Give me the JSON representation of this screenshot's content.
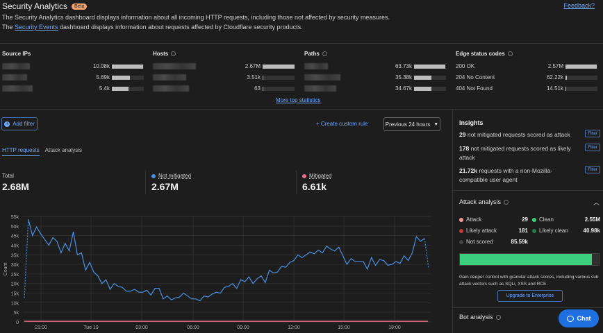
{
  "header": {
    "title": "Security Analytics",
    "badge": "Beta",
    "feedback": "Feedback?",
    "desc1": "The Security Analytics dashboard displays information about all incoming HTTP requests, including those not affected by security measures.",
    "desc2_prefix": "The ",
    "desc2_link": "Security Events",
    "desc2_suffix": " dashboard displays information about requests affected by Cloudflare security products."
  },
  "top_stats": {
    "source_ips": {
      "title": "Source IPs",
      "rows": [
        {
          "value": "10.08k",
          "share": 0.98
        },
        {
          "value": "5.69k",
          "share": 0.56
        },
        {
          "value": "5.4k",
          "share": 0.53
        }
      ]
    },
    "hosts": {
      "title": "Hosts",
      "rows": [
        {
          "value": "2.67M",
          "share": 0.99
        },
        {
          "value": "3.51k",
          "share": 0.02
        },
        {
          "value": "63",
          "share": 0.01
        }
      ]
    },
    "paths": {
      "title": "Paths",
      "rows": [
        {
          "value": "63.73k",
          "share": 0.98
        },
        {
          "value": "35.38k",
          "share": 0.55
        },
        {
          "value": "34.67k",
          "share": 0.54
        }
      ]
    },
    "edge_status": {
      "title": "Edge status codes",
      "rows": [
        {
          "name": "200 OK",
          "value": "2.57M",
          "share": 0.98
        },
        {
          "name": "204 No Content",
          "value": "62.22k",
          "share": 0.04
        },
        {
          "name": "404 Not Found",
          "value": "14.51k",
          "share": 0.02
        }
      ]
    },
    "more": "More top statistics"
  },
  "toolbar": {
    "add_filter": "Add filter",
    "custom_rule": "Create custom rule",
    "time_range": "Previous 24 hours"
  },
  "tabs": [
    "HTTP requests",
    "Attack analysis"
  ],
  "metrics": {
    "total": {
      "label": "Total",
      "value": "2.68M"
    },
    "not_mitigated": {
      "label": "Not mitigated",
      "value": "2.67M",
      "color": "#4a90e2"
    },
    "mitigated": {
      "label": "Mitigated",
      "value": "6.61k",
      "color": "#e86d8a"
    }
  },
  "chart_data": {
    "type": "line",
    "ylabel": "Count",
    "ylim": [
      0,
      55000
    ],
    "yticks": [
      "0",
      "5k",
      "10k",
      "15k",
      "20k",
      "25k",
      "30k",
      "35k",
      "40k",
      "45k",
      "50k",
      "55k"
    ],
    "xticks": [
      "21:00",
      "Tue 19",
      "03:00",
      "06:00",
      "09:00",
      "12:00",
      "15:00",
      "18:00"
    ],
    "series": [
      {
        "name": "Not mitigated",
        "color": "#4a90e2",
        "values": [
          12500,
          53500,
          45000,
          49500,
          46000,
          43000,
          40000,
          44000,
          42000,
          36000,
          41000,
          37000,
          47000,
          35000,
          36000,
          27000,
          31000,
          26000,
          24000,
          20000,
          22000,
          17000,
          20000,
          18500,
          18000,
          16000,
          16000,
          17000,
          15500,
          15500,
          16500,
          14000,
          17500,
          17500,
          12000,
          13500,
          11500,
          12500,
          13000,
          15000,
          13500,
          12000,
          12000,
          11000,
          13500,
          13000,
          14500,
          15500,
          15000,
          18000,
          18500,
          20000,
          17500,
          22000,
          21000,
          23500,
          20000,
          22500,
          24000,
          20500,
          27000,
          25500,
          26000,
          29000,
          28500,
          31000,
          32000,
          35000,
          33500,
          35000,
          36500,
          35500,
          37500,
          36000,
          39500,
          38000,
          37000,
          39000,
          34500,
          30000,
          33000,
          31500,
          31500,
          31500,
          27500,
          33500,
          29500,
          32500,
          32000,
          29500,
          30000,
          31500,
          30500,
          34500,
          32000,
          36000,
          44500,
          42000,
          43500,
          28000
        ],
        "dashed_segments": [
          "first",
          "last"
        ]
      },
      {
        "name": "Mitigated",
        "color": "#e86d8a",
        "values_constant": 300
      }
    ]
  },
  "insights": {
    "title": "Insights",
    "items": [
      {
        "count": "29",
        "text": "not mitigated requests scored as attack",
        "button": "Filter"
      },
      {
        "count": "178",
        "text": "not mitigated requests scored as likely attack",
        "button": "Filter"
      },
      {
        "count": "21.72k",
        "text": "requests with a non-Mozilla-compatible user agent",
        "button": "Filter"
      }
    ],
    "attack_analysis": {
      "title": "Attack analysis",
      "rows": [
        {
          "label": "Attack",
          "value": "29",
          "color": "#f49b9b"
        },
        {
          "label": "Clean",
          "value": "2.55M",
          "color": "#3ccf7e"
        },
        {
          "label": "Likely attack",
          "value": "181",
          "color": "#c43a3a"
        },
        {
          "label": "Likely clean",
          "value": "40.98k",
          "color": "#2a7a4c"
        },
        {
          "label": "Not scored",
          "value": "85.59k",
          "color": "#444444"
        }
      ],
      "clean_share": 0.95,
      "note": "Gain deeper control with granular attack scores, including various sub attack vectors such as SQLi, XSS and RCE.",
      "upgrade": "Upgrade to Enterprise"
    },
    "bot_analysis": "Bot analysis"
  },
  "chat": "Chat"
}
